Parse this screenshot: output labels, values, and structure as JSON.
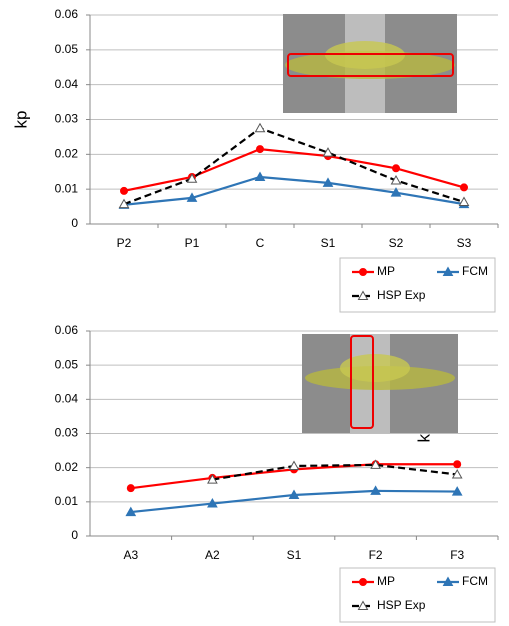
{
  "chart_data": [
    {
      "type": "line",
      "y_label": "kp",
      "categories": [
        "P2",
        "P1",
        "C",
        "S1",
        "S2",
        "S3"
      ],
      "ylim": [
        0,
        0.06
      ],
      "yticks": [
        0,
        0.01,
        0.02,
        0.03,
        0.04,
        0.05,
        0.06
      ],
      "grid": true,
      "series": [
        {
          "name": "MP",
          "color": "#ff0000",
          "marker": "circle",
          "dashed": false,
          "values": [
            0.0095,
            0.0135,
            0.0215,
            0.0195,
            0.016,
            0.0105
          ]
        },
        {
          "name": "FCM",
          "color": "#2e75b6",
          "marker": "triangle",
          "dashed": false,
          "values": [
            0.0055,
            0.0075,
            0.0135,
            0.0118,
            0.009,
            0.0057
          ]
        },
        {
          "name": "HSP Exp",
          "color": "#000000",
          "marker": "open-triangle",
          "dashed": true,
          "values": [
            0.0057,
            0.013,
            0.0275,
            0.0205,
            0.0125,
            0.0063
          ]
        }
      ]
    },
    {
      "type": "line",
      "y_label": "kp",
      "categories": [
        "A3",
        "A2",
        "S1",
        "F2",
        "F3"
      ],
      "ylim": [
        0,
        0.06
      ],
      "yticks": [
        0,
        0.01,
        0.02,
        0.03,
        0.04,
        0.05,
        0.06
      ],
      "grid": true,
      "series": [
        {
          "name": "MP",
          "color": "#ff0000",
          "marker": "circle",
          "dashed": false,
          "values": [
            0.014,
            0.017,
            0.0195,
            0.021,
            0.021
          ]
        },
        {
          "name": "FCM",
          "color": "#2e75b6",
          "marker": "triangle",
          "dashed": false,
          "values": [
            0.007,
            0.0095,
            0.012,
            0.0132,
            0.013
          ]
        },
        {
          "name": "HSP Exp",
          "color": "#000000",
          "marker": "open-triangle",
          "dashed": true,
          "values": [
            null,
            0.0165,
            0.0205,
            0.0208,
            0.018
          ]
        }
      ]
    }
  ]
}
